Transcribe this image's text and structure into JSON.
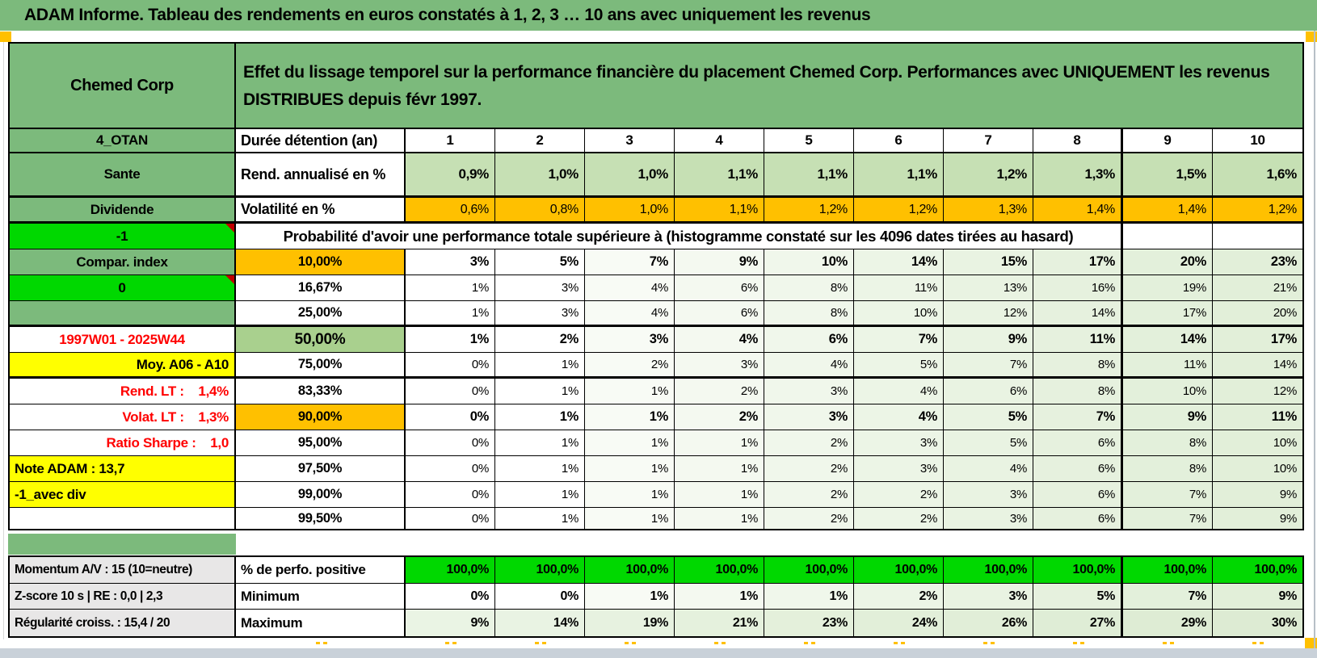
{
  "title_bar": {
    "text": "ADAM Informe. Tableau des rendements en euros constatés à 1, 2, 3 … 10 ans avec uniquement les revenus"
  },
  "header": {
    "company": "Chemed Corp",
    "desc1": "Effet du lissage temporel sur la performance financière du placement Chemed Corp. Performances avec UNIQUEMENT les revenus",
    "desc2": "DISTRIBUES depuis févr 1997."
  },
  "colors": {
    "header_green": "#7CBA7C",
    "bright_green": "#00D800",
    "orange": "#FFC000",
    "light_green_row": "#C6E0B4",
    "mid_green": "#A9D08E",
    "yellow": "#FFFF00",
    "gray_label": "#E8E7E7",
    "red_text": "#FF0000",
    "comment_triangle": "#C00000"
  },
  "grid": {
    "col_headers": [
      "1",
      "2",
      "3",
      "4",
      "5",
      "6",
      "7",
      "8",
      "9",
      "10"
    ],
    "duree_row": {
      "a": "4_OTAN",
      "b": "Durée détention (an)"
    },
    "rend_row": {
      "a": "Sante",
      "b": "Rend. annualisé en %",
      "values": [
        "0,9%",
        "1,0%",
        "1,0%",
        "1,1%",
        "1,1%",
        "1,1%",
        "1,2%",
        "1,3%",
        "1,5%",
        "1,6%"
      ]
    },
    "volat_row": {
      "a": "Dividende",
      "b": "Volatilité en %",
      "values": [
        "0,6%",
        "0,8%",
        "1,0%",
        "1,1%",
        "1,2%",
        "1,2%",
        "1,3%",
        "1,4%",
        "1,4%",
        "1,2%"
      ]
    },
    "proba_header": {
      "a": "-1",
      "text": "Probabilité d'avoir une performance totale supérieure à (histogramme constaté sur les 4096 dates tirées au hasard)"
    },
    "proba_rows": [
      {
        "a": "Compar. index",
        "a_style": "green",
        "b": "10,00%",
        "b_style": "orange",
        "bold": true,
        "values": [
          "3%",
          "5%",
          "7%",
          "9%",
          "10%",
          "14%",
          "15%",
          "17%",
          "20%",
          "23%"
        ]
      },
      {
        "a": "0",
        "a_style": "bright",
        "b": "16,67%",
        "values": [
          "1%",
          "3%",
          "4%",
          "6%",
          "8%",
          "11%",
          "13%",
          "16%",
          "19%",
          "21%"
        ]
      },
      {
        "a": "",
        "a_style": "green",
        "b": "25,00%",
        "values": [
          "1%",
          "3%",
          "4%",
          "6%",
          "8%",
          "10%",
          "12%",
          "14%",
          "17%",
          "20%"
        ]
      },
      {
        "a": "1997W01 - 2025W44",
        "a_style": "red-center",
        "b": "50,00%",
        "b_style": "mgreen",
        "bold": true,
        "big_b": true,
        "values": [
          "1%",
          "2%",
          "3%",
          "4%",
          "6%",
          "7%",
          "9%",
          "11%",
          "14%",
          "17%"
        ]
      },
      {
        "a": "Moy. A06 - A10",
        "a_style": "yellow-right",
        "b": "75,00%",
        "values": [
          "0%",
          "1%",
          "2%",
          "3%",
          "4%",
          "5%",
          "7%",
          "8%",
          "11%",
          "14%"
        ]
      },
      {
        "a": "Rend. LT :    1,4%",
        "a_style": "red-right",
        "b": "83,33%",
        "values": [
          "0%",
          "1%",
          "1%",
          "2%",
          "3%",
          "4%",
          "6%",
          "8%",
          "10%",
          "12%"
        ]
      },
      {
        "a": "Volat. LT :    1,3%",
        "a_style": "red-right",
        "b": "90,00%",
        "b_style": "orange",
        "bold": true,
        "values": [
          "0%",
          "1%",
          "1%",
          "2%",
          "3%",
          "4%",
          "5%",
          "7%",
          "9%",
          "11%"
        ]
      },
      {
        "a": "Ratio Sharpe :    1,0",
        "a_style": "red-right",
        "b": "95,00%",
        "values": [
          "0%",
          "1%",
          "1%",
          "1%",
          "2%",
          "3%",
          "5%",
          "6%",
          "8%",
          "10%"
        ]
      },
      {
        "a": "Note ADAM : 13,7",
        "a_style": "yellow-left",
        "b": "97,50%",
        "values": [
          "0%",
          "1%",
          "1%",
          "1%",
          "2%",
          "3%",
          "4%",
          "6%",
          "8%",
          "10%"
        ]
      },
      {
        "a": "-1_avec div",
        "a_style": "yellow-left",
        "b": "99,00%",
        "values": [
          "0%",
          "1%",
          "1%",
          "1%",
          "2%",
          "2%",
          "3%",
          "6%",
          "7%",
          "9%"
        ]
      },
      {
        "a": "",
        "a_style": "white",
        "b": "99,50%",
        "values": [
          "0%",
          "1%",
          "1%",
          "1%",
          "2%",
          "2%",
          "3%",
          "6%",
          "7%",
          "9%"
        ]
      }
    ],
    "bottom_rows": [
      {
        "a": "Momentum A/V : 15 (10=neutre)",
        "b": "% de perfo. positive",
        "cell_style": "bright",
        "values": [
          "100,0%",
          "100,0%",
          "100,0%",
          "100,0%",
          "100,0%",
          "100,0%",
          "100,0%",
          "100,0%",
          "100,0%",
          "100,0%"
        ]
      },
      {
        "a": "Z-score 10 s | RE : 0,0 | 2,3",
        "b": "Minimum",
        "cell_style": "tint",
        "values": [
          "0%",
          "0%",
          "1%",
          "1%",
          "1%",
          "2%",
          "3%",
          "5%",
          "7%",
          "9%"
        ]
      },
      {
        "a": "Régularité croiss. : 15,4 / 20",
        "b": "Maximum",
        "cell_style": "maxtint",
        "values": [
          "9%",
          "14%",
          "19%",
          "21%",
          "23%",
          "24%",
          "26%",
          "27%",
          "29%",
          "30%"
        ]
      }
    ],
    "col_tints": [
      "#FFFFFF",
      "#FFFFFF",
      "#F8FBF5",
      "#F4F9F0",
      "#F0F7EB",
      "#ECF5E6",
      "#E9F3E2",
      "#E6F1DE",
      "#E3F0DB",
      "#E2EFD9"
    ],
    "max_tints": [
      "#EAF4E4",
      "#E9F3E3",
      "#E7F2E0",
      "#E5F1DD",
      "#E4F0DB",
      "#E2EFD9",
      "#E1EED8",
      "#DFEDD6",
      "#DEECD4",
      "#DDEBD3"
    ]
  }
}
